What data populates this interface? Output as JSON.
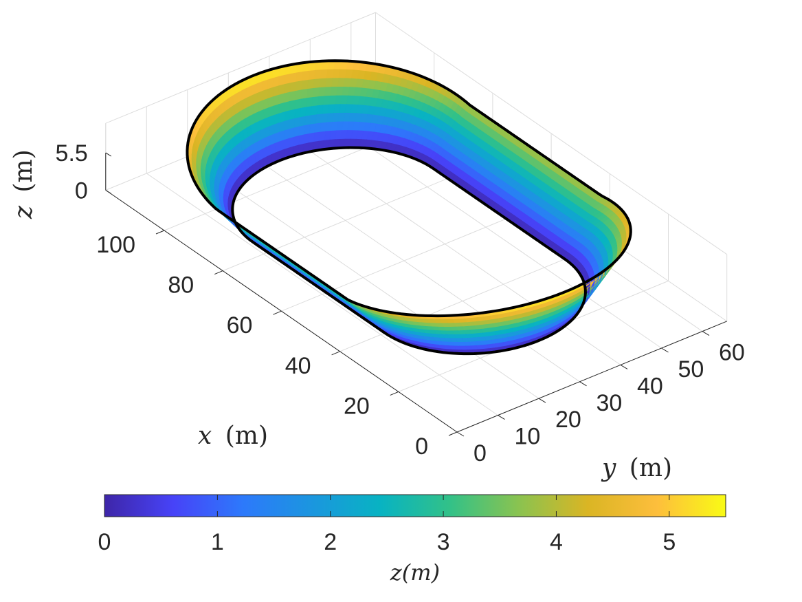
{
  "chart_data": {
    "type": "surface",
    "title": "",
    "view": "3d-isometric",
    "grid": true,
    "x_axis": {
      "label_var": "x",
      "label_unit": "(m)",
      "ticks": [
        "0",
        "20",
        "40",
        "60",
        "80",
        "100"
      ],
      "tick_values": [
        0,
        20,
        40,
        60,
        80,
        100
      ],
      "range": [
        0,
        120
      ]
    },
    "y_axis": {
      "label_var": "y",
      "label_unit": "(m)",
      "ticks": [
        "0",
        "10",
        "20",
        "30",
        "40",
        "50",
        "60"
      ],
      "tick_values": [
        0,
        10,
        20,
        30,
        40,
        50,
        60
      ],
      "range": [
        0,
        66
      ]
    },
    "z_axis": {
      "label_var": "z",
      "label_unit": "(m)",
      "ticks": [
        "0",
        "5.5"
      ],
      "tick_values": [
        0,
        5.5
      ],
      "range": [
        0,
        5.5
      ]
    },
    "surface": {
      "shape": "closed oval track (stadium) with banked curves",
      "straight_x_range": [
        40,
        85
      ],
      "center_y": 33,
      "inner_half_width_y": 22,
      "outer_half_width_y": 31,
      "max_height_z": 5.5,
      "edge_color": "#000000"
    },
    "colorbar": {
      "location": "bottom",
      "label": "z(m)",
      "ticks": [
        "0",
        "1",
        "2",
        "3",
        "4",
        "5"
      ],
      "tick_values": [
        0,
        1,
        2,
        3,
        4,
        5
      ],
      "range": [
        0,
        5.5
      ],
      "colormap": "parula",
      "stops": [
        "#3e26a8",
        "#4743f8",
        "#2d79fb",
        "#1b96df",
        "#08b3c2",
        "#32c188",
        "#8ac350",
        "#dab524",
        "#fdbe3c",
        "#f9fb15"
      ]
    }
  }
}
